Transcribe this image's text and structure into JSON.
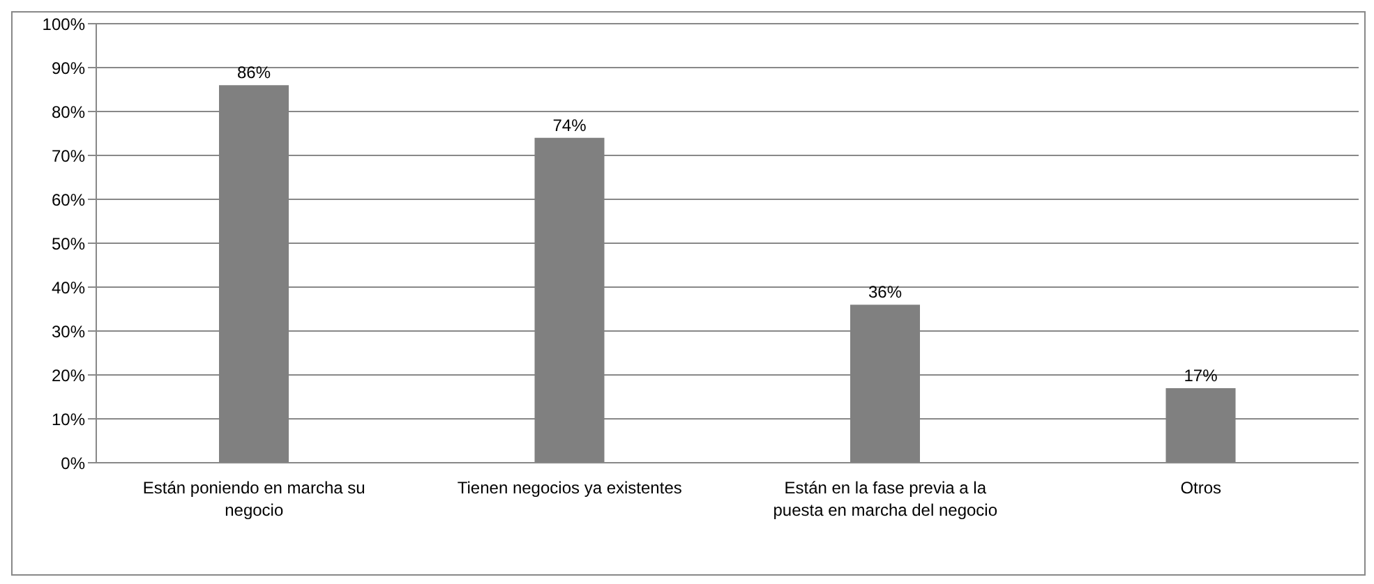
{
  "chart_data": {
    "type": "bar",
    "categories": [
      "Están poniendo en marcha su negocio",
      "Tienen negocios ya existentes",
      "Están en la fase previa a la puesta en marcha del negocio",
      "Otros"
    ],
    "values": [
      86,
      74,
      36,
      17
    ],
    "value_labels": [
      "86%",
      "74%",
      "36%",
      "17%"
    ],
    "color": "#808080",
    "ylim": [
      0,
      100
    ],
    "yticks": [
      {
        "value": 0,
        "label": "0%"
      },
      {
        "value": 10,
        "label": "10%"
      },
      {
        "value": 20,
        "label": "20%"
      },
      {
        "value": 30,
        "label": "30%"
      },
      {
        "value": 40,
        "label": "40%"
      },
      {
        "value": 50,
        "label": "50%"
      },
      {
        "value": 60,
        "label": "60%"
      },
      {
        "value": 70,
        "label": "70%"
      },
      {
        "value": 80,
        "label": "80%"
      },
      {
        "value": 90,
        "label": "90%"
      },
      {
        "value": 100,
        "label": "100%"
      }
    ],
    "grid": "y",
    "legend": false
  }
}
